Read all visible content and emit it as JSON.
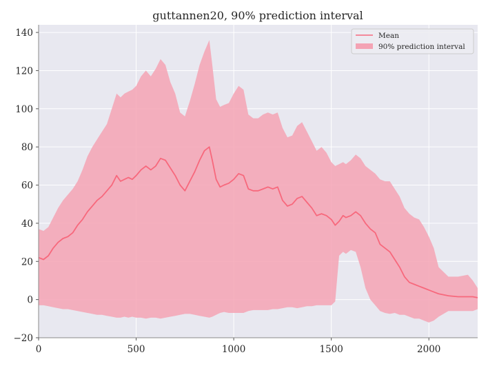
{
  "chart_data": {
    "type": "area",
    "title": "guttannen20, 90% prediction interval",
    "xlabel": "",
    "ylabel": "",
    "xlim": [
      0,
      2250
    ],
    "ylim": [
      -20,
      144
    ],
    "xticks": [
      0,
      500,
      1000,
      1500,
      2000
    ],
    "yticks": [
      -20,
      0,
      20,
      40,
      60,
      80,
      100,
      120,
      140
    ],
    "grid": true,
    "legend_position": "top-right",
    "colors": {
      "plot_background": "#e8e8f0",
      "mean_line": "#f7687c",
      "interval_fill": "#f4a3b4"
    },
    "series": [
      {
        "name": "Mean",
        "kind": "line",
        "x": [
          0,
          25,
          50,
          75,
          100,
          125,
          150,
          175,
          200,
          225,
          250,
          275,
          300,
          325,
          350,
          375,
          400,
          420,
          440,
          460,
          480,
          500,
          525,
          550,
          575,
          600,
          625,
          650,
          675,
          700,
          725,
          750,
          775,
          800,
          825,
          850,
          875,
          890,
          910,
          930,
          950,
          975,
          1000,
          1025,
          1050,
          1075,
          1100,
          1125,
          1150,
          1175,
          1200,
          1225,
          1250,
          1275,
          1300,
          1325,
          1350,
          1375,
          1400,
          1425,
          1450,
          1475,
          1500,
          1520,
          1540,
          1560,
          1575,
          1600,
          1625,
          1650,
          1675,
          1700,
          1725,
          1750,
          1775,
          1800,
          1825,
          1850,
          1875,
          1900,
          1925,
          1950,
          1975,
          2000,
          2025,
          2050,
          2100,
          2150,
          2200,
          2225,
          2250
        ],
        "y": [
          22,
          21,
          23,
          27,
          30,
          32,
          33,
          35,
          39,
          42,
          46,
          49,
          52,
          54,
          57,
          60,
          65,
          62,
          63,
          64,
          63,
          65,
          68,
          70,
          68,
          70,
          74,
          73,
          69,
          65,
          60,
          57,
          62,
          67,
          73,
          78,
          80,
          73,
          63,
          59,
          60,
          61,
          63,
          66,
          65,
          58,
          57,
          57,
          58,
          59,
          58,
          59,
          52,
          49,
          50,
          53,
          54,
          51,
          48,
          44,
          45,
          44,
          42,
          39,
          41,
          44,
          43,
          44,
          46,
          44,
          40,
          37,
          35,
          29,
          27,
          25,
          21,
          17,
          12,
          9,
          8,
          7,
          6,
          5,
          4,
          3,
          2,
          1.5,
          1.5,
          1.5,
          1
        ]
      },
      {
        "name": "90% prediction interval",
        "kind": "band",
        "x": [
          0,
          25,
          50,
          75,
          100,
          125,
          150,
          175,
          200,
          225,
          250,
          275,
          300,
          325,
          350,
          375,
          400,
          420,
          440,
          460,
          480,
          500,
          525,
          550,
          575,
          600,
          625,
          650,
          675,
          700,
          725,
          750,
          775,
          800,
          825,
          850,
          875,
          890,
          910,
          930,
          950,
          975,
          1000,
          1025,
          1050,
          1075,
          1100,
          1125,
          1150,
          1175,
          1200,
          1225,
          1250,
          1275,
          1300,
          1325,
          1350,
          1375,
          1400,
          1425,
          1450,
          1475,
          1500,
          1520,
          1540,
          1560,
          1575,
          1600,
          1625,
          1650,
          1675,
          1700,
          1725,
          1750,
          1775,
          1800,
          1825,
          1850,
          1875,
          1900,
          1925,
          1950,
          1975,
          2000,
          2025,
          2050,
          2100,
          2150,
          2200,
          2225,
          2250
        ],
        "lower": [
          -3,
          -3,
          -3.5,
          -4,
          -4.5,
          -5,
          -5,
          -5.5,
          -6,
          -6.5,
          -7,
          -7.5,
          -8,
          -8,
          -8.5,
          -9,
          -9.5,
          -9.5,
          -9,
          -9.5,
          -9,
          -9.5,
          -9.5,
          -10,
          -9.5,
          -9.5,
          -10,
          -9.5,
          -9,
          -8.5,
          -8,
          -7.5,
          -7.5,
          -8,
          -8.5,
          -9,
          -9.5,
          -9,
          -8,
          -7,
          -6.5,
          -7,
          -7,
          -7,
          -7,
          -6,
          -5.5,
          -5.5,
          -5.5,
          -5.5,
          -5,
          -5,
          -4.5,
          -4,
          -4,
          -4.5,
          -4,
          -3.5,
          -3.5,
          -3,
          -3,
          -3,
          -3,
          -1,
          23,
          25,
          24,
          26,
          25,
          17,
          6,
          0,
          -3,
          -6,
          -7,
          -7.5,
          -7,
          -8,
          -8,
          -9,
          -10,
          -10,
          -11,
          -12,
          -11,
          -9,
          -6,
          -6,
          -6,
          -6,
          -5
        ],
        "upper": [
          37,
          36,
          38,
          43,
          48,
          52,
          55,
          58,
          62,
          68,
          75,
          80,
          84,
          88,
          92,
          100,
          108,
          106,
          108,
          109,
          110,
          112,
          117,
          120,
          117,
          121,
          126,
          123,
          114,
          108,
          98,
          96,
          104,
          113,
          123,
          130,
          136,
          123,
          105,
          101,
          102,
          103,
          108,
          112,
          110,
          97,
          95,
          95,
          97,
          98,
          97,
          98,
          90,
          85,
          86,
          91,
          93,
          88,
          83,
          78,
          80,
          77,
          72,
          70,
          71,
          72,
          71,
          73,
          76,
          74,
          70,
          68,
          66,
          63,
          62,
          62,
          58,
          54,
          48,
          45,
          43,
          42,
          38,
          33,
          27,
          17,
          12,
          12,
          13,
          10,
          6
        ]
      }
    ]
  }
}
